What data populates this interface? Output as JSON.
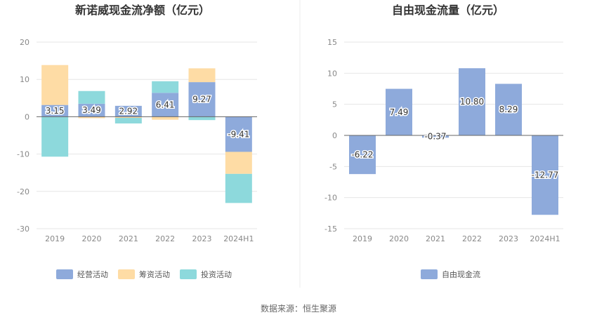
{
  "source_text": "数据来源：恒生聚源",
  "chart_data": [
    {
      "type": "bar",
      "stacked": true,
      "title": "新诺威现金流净额（亿元）",
      "categories": [
        "2019",
        "2020",
        "2021",
        "2022",
        "2023",
        "2024H1"
      ],
      "ylim": [
        -30,
        20
      ],
      "yticks": [
        20,
        10,
        0,
        -10,
        -20,
        -30
      ],
      "grid": true,
      "legend_position": "bottom",
      "series": [
        {
          "name": "经营活动",
          "color": "#8eaadb",
          "values": [
            3.15,
            3.49,
            2.92,
            6.41,
            9.27,
            -9.41
          ],
          "labels": [
            "3.15",
            "3.49",
            "2.92",
            "6.41",
            "9.27",
            "-9.41"
          ]
        },
        {
          "name": "筹资活动",
          "color": "#fedca5",
          "values": [
            10.7,
            -0.4,
            -0.3,
            -0.8,
            3.7,
            -5.9
          ]
        },
        {
          "name": "投资活动",
          "color": "#8dd9dc",
          "values": [
            -10.7,
            3.4,
            -1.5,
            3.1,
            -0.9,
            -7.8
          ]
        }
      ]
    },
    {
      "type": "bar",
      "title": "自由现金流量（亿元）",
      "categories": [
        "2019",
        "2020",
        "2021",
        "2022",
        "2023",
        "2024H1"
      ],
      "ylim": [
        -15,
        15
      ],
      "yticks": [
        15,
        10,
        5,
        0,
        -5,
        -10,
        -15
      ],
      "grid": true,
      "legend_position": "bottom",
      "series": [
        {
          "name": "自由现金流",
          "color": "#8eaadb",
          "values": [
            -6.22,
            7.49,
            -0.37,
            10.8,
            8.29,
            -12.77
          ],
          "labels": [
            "-6.22",
            "7.49",
            "-0.37",
            "10.80",
            "8.29",
            "-12.77"
          ]
        }
      ]
    }
  ]
}
